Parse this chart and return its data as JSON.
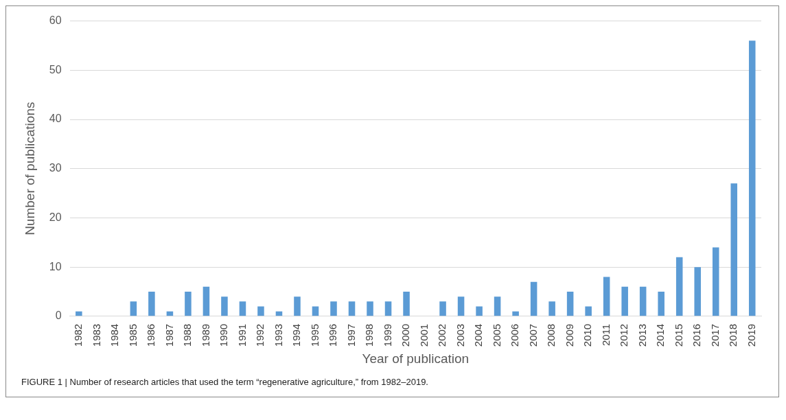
{
  "chart_data": {
    "type": "bar",
    "xlabel": "Year of publication",
    "ylabel": "Number of publications",
    "categories": [
      "1982",
      "1983",
      "1984",
      "1985",
      "1986",
      "1987",
      "1988",
      "1989",
      "1990",
      "1991",
      "1992",
      "1993",
      "1994",
      "1995",
      "1996",
      "1997",
      "1998",
      "1999",
      "2000",
      "2001",
      "2002",
      "2003",
      "2004",
      "2005",
      "2006",
      "2007",
      "2008",
      "2009",
      "2010",
      "2011",
      "2012",
      "2013",
      "2014",
      "2015",
      "2016",
      "2017",
      "2018",
      "2019"
    ],
    "values": [
      1,
      0,
      0,
      3,
      5,
      1,
      5,
      6,
      4,
      3,
      2,
      1,
      4,
      2,
      3,
      3,
      3,
      3,
      5,
      0,
      3,
      4,
      2,
      4,
      1,
      7,
      3,
      5,
      2,
      8,
      6,
      6,
      5,
      12,
      10,
      14,
      27,
      56
    ],
    "color": "#5b9bd5",
    "ylim": [
      0,
      60
    ],
    "yticks": [
      0,
      10,
      20,
      30,
      40,
      50,
      60
    ],
    "grid": "y",
    "legend": false,
    "annotations": [
      "FIGURE 1 | Number of research articles that used the term “regenerative agriculture,” from 1982–2019."
    ]
  }
}
